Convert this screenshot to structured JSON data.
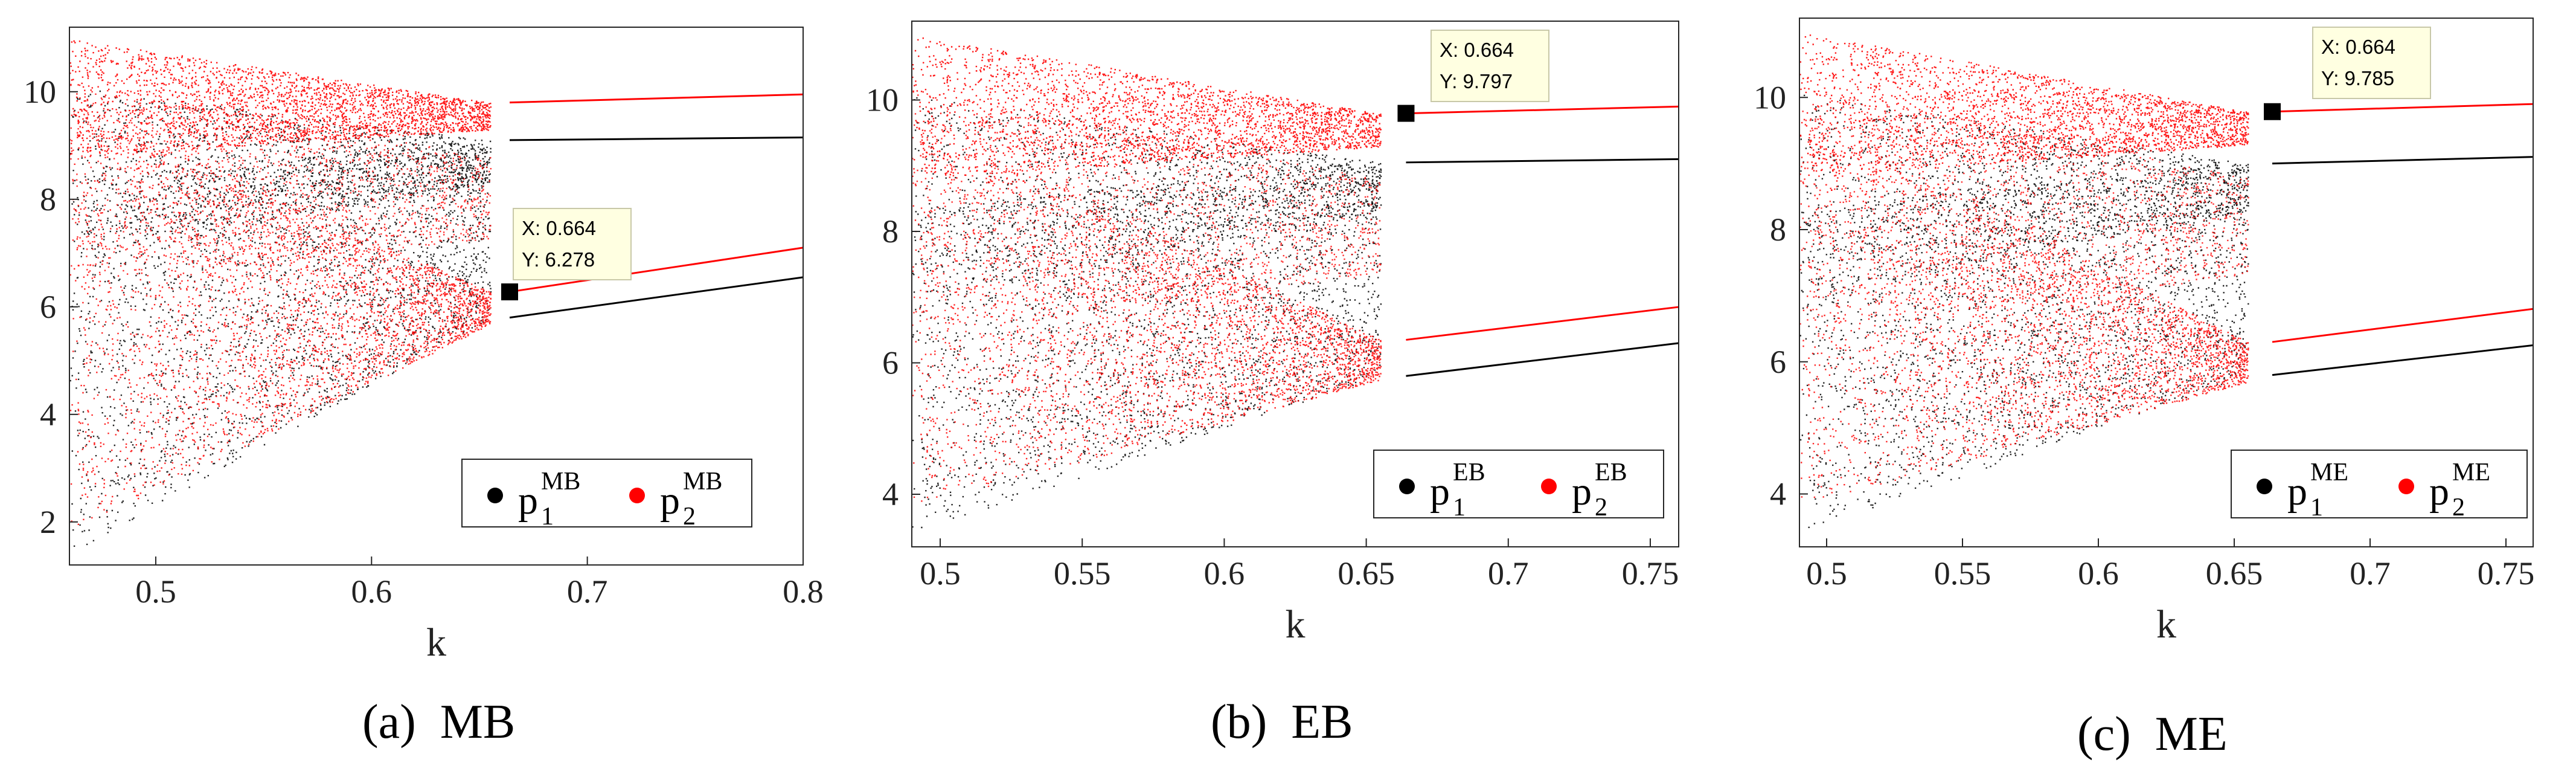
{
  "colors": {
    "p1": "#000000",
    "p2": "#ff0000",
    "tooltip_bg": "#ffffe1",
    "axis": "#262626"
  },
  "chart_data": [
    {
      "type": "scatter",
      "caption": "(a)  MB",
      "xlabel": "k",
      "ylabel": "",
      "xlim": [
        0.46,
        0.8
      ],
      "ylim": [
        1.2,
        11.2
      ],
      "xticks": [
        "0.5",
        "0.6",
        "0.7",
        "0.8"
      ],
      "yticks": [
        "2",
        "4",
        "6",
        "8",
        "10"
      ],
      "series": [
        {
          "name": "p",
          "sub": "1",
          "sup": "MB",
          "color": "#000000",
          "fixed_point_start": [
            0.664,
            5.8
          ],
          "fixed_point_end": [
            0.8,
            6.55
          ],
          "upper_branch": [
            [
              0.664,
              9.1
            ],
            [
              0.8,
              9.15
            ]
          ]
        },
        {
          "name": "p",
          "sub": "2",
          "sup": "MB",
          "color": "#ff0000",
          "fixed_point_start": [
            0.664,
            6.278
          ],
          "fixed_point_end": [
            0.8,
            7.1
          ],
          "upper_branch": [
            [
              0.664,
              9.8
            ],
            [
              0.8,
              9.95
            ]
          ]
        }
      ],
      "datatip": {
        "x_label": "X: 0.664",
        "y_label": "Y: 6.278",
        "x": 0.664,
        "y": 6.278
      },
      "legend_position": "lower-right"
    },
    {
      "type": "scatter",
      "caption": "(b)  EB",
      "xlabel": "k",
      "ylabel": "",
      "xlim": [
        0.49,
        0.76
      ],
      "ylim": [
        3.2,
        11.2
      ],
      "xticks": [
        "0.5",
        "0.55",
        "0.6",
        "0.65",
        "0.7",
        "0.75"
      ],
      "yticks": [
        "4",
        "6",
        "8",
        "10"
      ],
      "series": [
        {
          "name": "p",
          "sub": "1",
          "sup": "EB",
          "color": "#000000",
          "fixed_point_start": [
            0.664,
            5.8
          ],
          "fixed_point_end": [
            0.76,
            6.3
          ],
          "upper_branch": [
            [
              0.664,
              9.05
            ],
            [
              0.76,
              9.1
            ]
          ]
        },
        {
          "name": "p",
          "sub": "2",
          "sup": "EB",
          "color": "#ff0000",
          "fixed_point_start": [
            0.664,
            6.35
          ],
          "fixed_point_end": [
            0.76,
            6.85
          ],
          "upper_branch": [
            [
              0.664,
              9.797
            ],
            [
              0.76,
              9.9
            ]
          ]
        }
      ],
      "datatip": {
        "x_label": "X: 0.664",
        "y_label": "Y: 9.797",
        "x": 0.664,
        "y": 9.797
      },
      "legend_position": "lower-right"
    },
    {
      "type": "scatter",
      "caption": "(c)  ME",
      "xlabel": "k",
      "ylabel": "",
      "xlim": [
        0.49,
        0.76
      ],
      "ylim": [
        3.2,
        11.2
      ],
      "xticks": [
        "0.5",
        "0.55",
        "0.6",
        "0.65",
        "0.7",
        "0.75"
      ],
      "yticks": [
        "4",
        "6",
        "8",
        "10"
      ],
      "series": [
        {
          "name": "p",
          "sub": "1",
          "sup": "ME",
          "color": "#000000",
          "fixed_point_start": [
            0.664,
            5.8
          ],
          "fixed_point_end": [
            0.76,
            6.25
          ],
          "upper_branch": [
            [
              0.664,
              9.0
            ],
            [
              0.76,
              9.1
            ]
          ]
        },
        {
          "name": "p",
          "sub": "2",
          "sup": "ME",
          "color": "#ff0000",
          "fixed_point_start": [
            0.664,
            6.3
          ],
          "fixed_point_end": [
            0.76,
            6.8
          ],
          "upper_branch": [
            [
              0.664,
              9.785
            ],
            [
              0.76,
              9.9
            ]
          ]
        }
      ],
      "datatip": {
        "x_label": "X: 0.664",
        "y_label": "Y: 9.785",
        "x": 0.664,
        "y": 9.785
      },
      "legend_position": "lower-right"
    }
  ]
}
